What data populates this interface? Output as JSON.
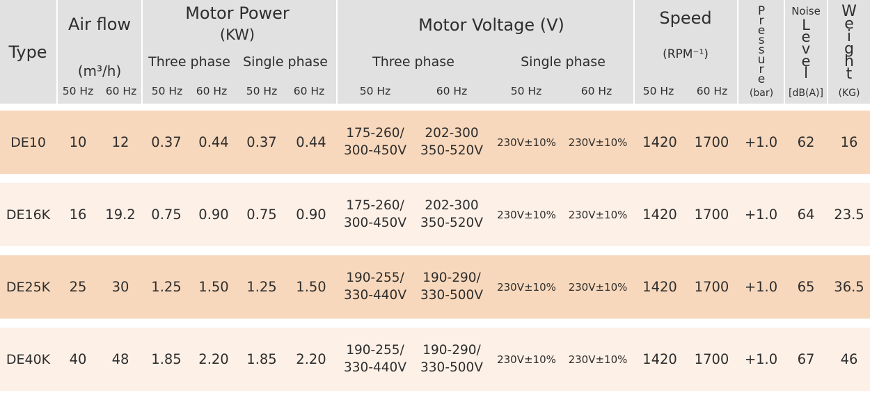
{
  "header": {
    "type": "Type",
    "air_flow": "Air flow",
    "air_flow_unit": "(m³/h)",
    "motor_power": "Motor Power",
    "motor_power_unit": "(KW)",
    "motor_voltage": "Motor Voltage (V)",
    "speed": "Speed",
    "speed_unit": "(RPM⁻¹)",
    "pressure_letters": [
      "P",
      "r",
      "e",
      "s",
      "s",
      "u",
      "r",
      "e"
    ],
    "pressure_unit": "(bar)",
    "noise_top": "Noise",
    "noise_letters": [
      "L",
      "e",
      "v",
      "e",
      "l"
    ],
    "noise_unit": "[dB(A)]",
    "weight_letters": [
      "W",
      "e",
      "i",
      "g",
      "h",
      "t"
    ],
    "weight_unit": "(KG)",
    "three_phase": "Three phase",
    "single_phase": "Single phase",
    "hz50": "50 Hz",
    "hz60": "60 Hz"
  },
  "rows": [
    {
      "type": "DE10",
      "air50": "10",
      "air60": "12",
      "p3_50": "0.37",
      "p3_60": "0.44",
      "p1_50": "0.37",
      "p1_60": "0.44",
      "v3_50_a": "175-260/",
      "v3_50_b": "300-450V",
      "v3_60_a": "202-300",
      "v3_60_b": "350-520V",
      "v1_50": "230V±10%",
      "v1_60": "230V±10%",
      "sp50": "1420",
      "sp60": "1700",
      "pressure": "+1.0",
      "noise": "62",
      "weight": "16"
    },
    {
      "type": "DE16K",
      "air50": "16",
      "air60": "19.2",
      "p3_50": "0.75",
      "p3_60": "0.90",
      "p1_50": "0.75",
      "p1_60": "0.90",
      "v3_50_a": "175-260/",
      "v3_50_b": "300-450V",
      "v3_60_a": "202-300",
      "v3_60_b": "350-520V",
      "v1_50": "230V±10%",
      "v1_60": "230V±10%",
      "sp50": "1420",
      "sp60": "1700",
      "pressure": "+1.0",
      "noise": "64",
      "weight": "23.5"
    },
    {
      "type": "DE25K",
      "air50": "25",
      "air60": "30",
      "p3_50": "1.25",
      "p3_60": "1.50",
      "p1_50": "1.25",
      "p1_60": "1.50",
      "v3_50_a": "190-255/",
      "v3_50_b": "330-440V",
      "v3_60_a": "190-290/",
      "v3_60_b": "330-500V",
      "v1_50": "230V±10%",
      "v1_60": "230V±10%",
      "sp50": "1420",
      "sp60": "1700",
      "pressure": "+1.0",
      "noise": "65",
      "weight": "36.5"
    },
    {
      "type": "DE40K",
      "air50": "40",
      "air60": "48",
      "p3_50": "1.85",
      "p3_60": "2.20",
      "p1_50": "1.85",
      "p1_60": "2.20",
      "v3_50_a": "190-255/",
      "v3_50_b": "330-440V",
      "v3_60_a": "190-290/",
      "v3_60_b": "330-500V",
      "v1_50": "230V±10%",
      "v1_60": "230V±10%",
      "sp50": "1420",
      "sp60": "1700",
      "pressure": "+1.0",
      "noise": "67",
      "weight": "46"
    }
  ],
  "colors": {
    "header_bg": "#e1e1e1",
    "row_dark": "#f8d8bc",
    "row_light": "#fdf0e7",
    "text": "#2e2e2e"
  }
}
